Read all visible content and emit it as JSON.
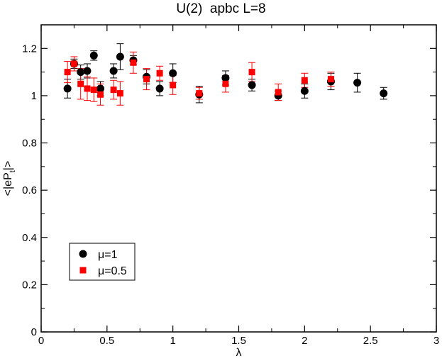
{
  "chart_data": {
    "type": "scatter",
    "title": "U(2)  apbc L=8",
    "xlabel": "λ",
    "ylabel_main": "<|eP",
    "ylabel_sub": "t",
    "ylabel_end": "|>",
    "xlim": [
      0,
      3
    ],
    "ylim": [
      0,
      1.3
    ],
    "x_ticks": [
      0,
      0.5,
      1,
      1.5,
      2,
      2.5,
      3
    ],
    "x_tick_labels": [
      "0",
      "0.5",
      "1",
      "1.5",
      "2",
      "2.5",
      "3"
    ],
    "y_ticks": [
      0,
      0.2,
      0.4,
      0.6,
      0.8,
      1,
      1.2
    ],
    "y_tick_labels": [
      "0",
      "0.2",
      "0.4",
      "0.6",
      "0.8",
      "1",
      "1.2"
    ],
    "grid": false,
    "legend_position": "bottom-left",
    "series": [
      {
        "name": "μ=1",
        "marker": "circle",
        "color": "#000000",
        "points": [
          {
            "x": 0.2,
            "y": 1.03,
            "err": 0.04
          },
          {
            "x": 0.25,
            "y": 1.135,
            "err": 0.02
          },
          {
            "x": 0.3,
            "y": 1.1,
            "err": 0.03
          },
          {
            "x": 0.35,
            "y": 1.105,
            "err": 0.03
          },
          {
            "x": 0.4,
            "y": 1.17,
            "err": 0.02
          },
          {
            "x": 0.45,
            "y": 1.03,
            "err": 0.03
          },
          {
            "x": 0.55,
            "y": 1.105,
            "err": 0.03
          },
          {
            "x": 0.6,
            "y": 1.165,
            "err": 0.055
          },
          {
            "x": 0.7,
            "y": 1.15,
            "err": 0.02
          },
          {
            "x": 0.8,
            "y": 1.08,
            "err": 0.03
          },
          {
            "x": 0.9,
            "y": 1.03,
            "err": 0.03
          },
          {
            "x": 1.0,
            "y": 1.095,
            "err": 0.04
          },
          {
            "x": 1.2,
            "y": 1.005,
            "err": 0.035
          },
          {
            "x": 1.4,
            "y": 1.075,
            "err": 0.03
          },
          {
            "x": 1.6,
            "y": 1.045,
            "err": 0.025
          },
          {
            "x": 1.8,
            "y": 1.0,
            "err": 0.02
          },
          {
            "x": 2.0,
            "y": 1.02,
            "err": 0.03
          },
          {
            "x": 2.2,
            "y": 1.06,
            "err": 0.035
          },
          {
            "x": 2.4,
            "y": 1.055,
            "err": 0.04
          },
          {
            "x": 2.6,
            "y": 1.01,
            "err": 0.025
          }
        ]
      },
      {
        "name": "μ=0.5",
        "marker": "square",
        "color": "#ff0000",
        "points": [
          {
            "x": 0.2,
            "y": 1.1,
            "err": 0.045
          },
          {
            "x": 0.25,
            "y": 1.135,
            "err": 0.03
          },
          {
            "x": 0.3,
            "y": 1.05,
            "err": 0.065
          },
          {
            "x": 0.35,
            "y": 1.03,
            "err": 0.05
          },
          {
            "x": 0.4,
            "y": 1.025,
            "err": 0.05
          },
          {
            "x": 0.45,
            "y": 1.005,
            "err": 0.045
          },
          {
            "x": 0.55,
            "y": 1.025,
            "err": 0.04
          },
          {
            "x": 0.6,
            "y": 1.01,
            "err": 0.05
          },
          {
            "x": 0.7,
            "y": 1.14,
            "err": 0.045
          },
          {
            "x": 0.8,
            "y": 1.07,
            "err": 0.045
          },
          {
            "x": 0.9,
            "y": 1.095,
            "err": 0.03
          },
          {
            "x": 1.0,
            "y": 1.045,
            "err": 0.04
          },
          {
            "x": 1.2,
            "y": 1.01,
            "err": 0.025
          },
          {
            "x": 1.4,
            "y": 1.05,
            "err": 0.035
          },
          {
            "x": 1.6,
            "y": 1.1,
            "err": 0.04
          },
          {
            "x": 1.8,
            "y": 1.015,
            "err": 0.035
          },
          {
            "x": 2.0,
            "y": 1.065,
            "err": 0.03
          },
          {
            "x": 2.2,
            "y": 1.07,
            "err": 0.03
          }
        ]
      }
    ]
  }
}
